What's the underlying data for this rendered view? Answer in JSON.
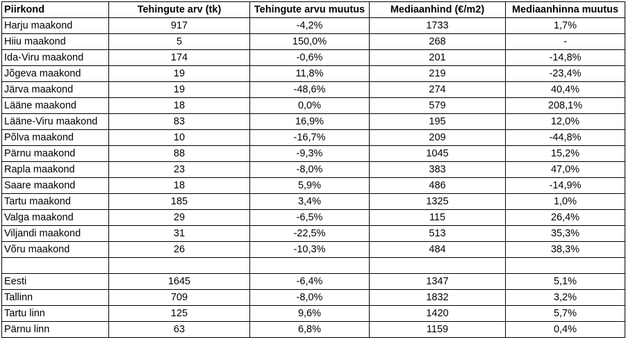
{
  "chart_data": {
    "type": "table",
    "columns": [
      "Piirkond",
      "Tehingute arv (tk)",
      "Tehingute arvu muutus",
      "Mediaanhind (€/m2)",
      "Mediaanhinna muutus"
    ],
    "rows": [
      [
        "Harju maakond",
        "917",
        "-4,2%",
        "1733",
        "1,7%"
      ],
      [
        "Hiiu maakond",
        "5",
        "150,0%",
        "268",
        "-"
      ],
      [
        "Ida-Viru maakond",
        "174",
        "-0,6%",
        "201",
        "-14,8%"
      ],
      [
        "Jõgeva maakond",
        "19",
        "11,8%",
        "219",
        "-23,4%"
      ],
      [
        "Järva maakond",
        "19",
        "-48,6%",
        "274",
        "40,4%"
      ],
      [
        "Lääne maakond",
        "18",
        "0,0%",
        "579",
        "208,1%"
      ],
      [
        "Lääne-Viru maakond",
        "83",
        "16,9%",
        "195",
        "12,0%"
      ],
      [
        "Põlva maakond",
        "10",
        "-16,7%",
        "209",
        "-44,8%"
      ],
      [
        "Pärnu maakond",
        "88",
        "-9,3%",
        "1045",
        "15,2%"
      ],
      [
        "Rapla maakond",
        "23",
        "-8,0%",
        "383",
        "47,0%"
      ],
      [
        "Saare maakond",
        "18",
        "5,9%",
        "486",
        "-14,9%"
      ],
      [
        "Tartu maakond",
        "185",
        "3,4%",
        "1325",
        "1,0%"
      ],
      [
        "Valga maakond",
        "29",
        "-6,5%",
        "115",
        "26,4%"
      ],
      [
        "Viljandi maakond",
        "31",
        "-22,5%",
        "513",
        "35,3%"
      ],
      [
        "Võru maakond",
        "26",
        "-10,3%",
        "484",
        "38,3%"
      ]
    ],
    "summary_rows": [
      [
        "Eesti",
        "1645",
        "-6,4%",
        "1347",
        "5,1%"
      ],
      [
        "Tallinn",
        "709",
        "-8,0%",
        "1832",
        "3,2%"
      ],
      [
        "Tartu linn",
        "125",
        "9,6%",
        "1420",
        "5,7%"
      ],
      [
        "Pärnu linn",
        "63",
        "6,8%",
        "1159",
        "0,4%"
      ]
    ]
  }
}
